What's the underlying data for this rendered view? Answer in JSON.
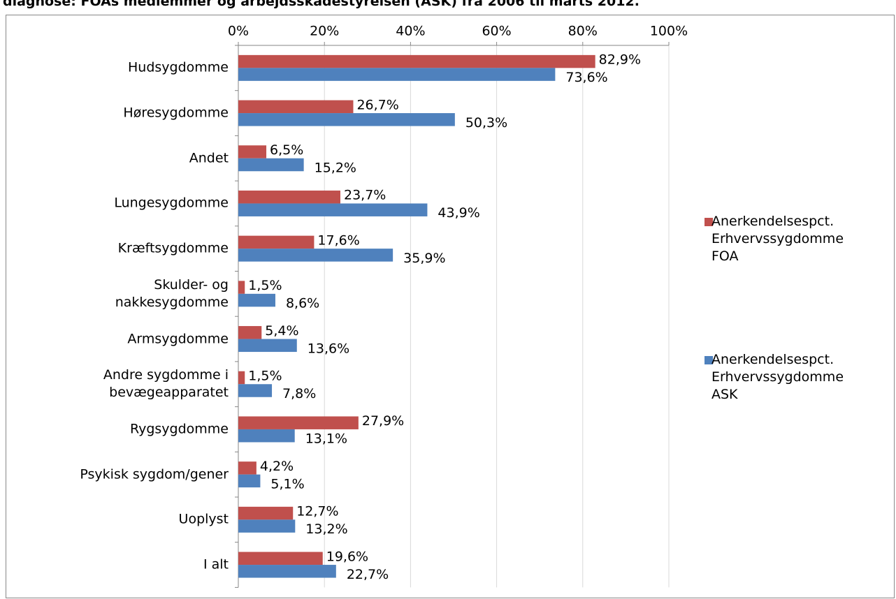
{
  "chart_data": {
    "type": "hbar",
    "title": "diagnose: FOAs medlemmer og arbejdsskadestyrelsen (ASK) fra 2006 til marts 2012.",
    "categories": [
      "Hudsygdomme",
      "Høresygdomme",
      "Andet",
      "Lungesygdomme",
      "Kræftsygdomme",
      "Skulder- og\nnakkesygdomme",
      "Armsygdomme",
      "Andre sygdomme i\nbevægeapparatet",
      "Rygsygdomme",
      "Psykisk sygdom/gener",
      "Uoplyst",
      "I alt"
    ],
    "series": [
      {
        "name": "Anerkendelsespct.\nErhvervssygdomme\nFOA",
        "color": "#c0504d",
        "values": [
          82.9,
          26.7,
          6.5,
          23.7,
          17.6,
          1.5,
          5.4,
          1.5,
          27.9,
          4.2,
          12.7,
          19.6
        ],
        "value_labels": [
          "82,9%",
          "26,7%",
          "6,5%",
          "23,7%",
          "17,6%",
          "1,5%",
          "5,4%",
          "1,5%",
          "27,9%",
          "4,2%",
          "12,7%",
          "19,6%"
        ]
      },
      {
        "name": "Anerkendelsespct.\nErhvervssygdomme\nASK",
        "color": "#4f81bd",
        "values": [
          73.6,
          50.3,
          15.2,
          43.9,
          35.9,
          8.6,
          13.6,
          7.8,
          13.1,
          5.1,
          13.2,
          22.7
        ],
        "value_labels": [
          "73,6%",
          "50,3%",
          "15,2%",
          "43,9%",
          "35,9%",
          "8,6%",
          "13,6%",
          "7,8%",
          "13,1%",
          "5,1%",
          "13,2%",
          "22,7%"
        ]
      }
    ],
    "xlim": [
      0,
      100
    ],
    "xticks": [
      {
        "value": 0,
        "label": "0%"
      },
      {
        "value": 20,
        "label": "20%"
      },
      {
        "value": 40,
        "label": "40%"
      },
      {
        "value": 60,
        "label": "60%"
      },
      {
        "value": 80,
        "label": "80%"
      },
      {
        "value": 100,
        "label": "100%"
      }
    ],
    "grid": true
  }
}
